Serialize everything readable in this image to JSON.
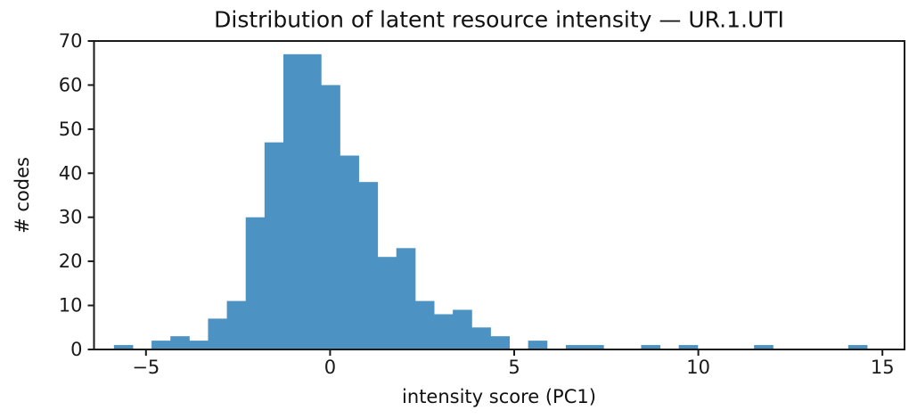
{
  "chart_data": {
    "type": "bar",
    "subtype": "histogram",
    "title": "Distribution of latent resource intensity — UR.1.UTI",
    "xlabel": "intensity score (PC1)",
    "ylabel": "# codes",
    "bin_start": -5.87,
    "bin_width": 0.5113,
    "counts": [
      1,
      0,
      2,
      3,
      2,
      7,
      11,
      30,
      47,
      67,
      67,
      60,
      44,
      38,
      21,
      23,
      11,
      8,
      9,
      5,
      3,
      0,
      2,
      0,
      1,
      1,
      0,
      0,
      1,
      0,
      1,
      0,
      0,
      0,
      1,
      0,
      0,
      0,
      0,
      1
    ],
    "xlim": [
      -6.41,
      15.6
    ],
    "ylim": [
      0,
      70
    ],
    "xticks": [
      {
        "value": -5,
        "label": "−5"
      },
      {
        "value": 0,
        "label": "0"
      },
      {
        "value": 5,
        "label": "5"
      },
      {
        "value": 10,
        "label": "10"
      },
      {
        "value": 15,
        "label": "15"
      }
    ],
    "yticks": [
      {
        "value": 0,
        "label": "0"
      },
      {
        "value": 10,
        "label": "10"
      },
      {
        "value": 20,
        "label": "20"
      },
      {
        "value": 30,
        "label": "30"
      },
      {
        "value": 40,
        "label": "40"
      },
      {
        "value": 50,
        "label": "50"
      },
      {
        "value": 60,
        "label": "60"
      },
      {
        "value": 70,
        "label": "70"
      }
    ],
    "grid": false,
    "legend": null,
    "bar_color": "#4C92C3",
    "axis_color": "#1a1a1a",
    "background": "#FFFFFF"
  }
}
